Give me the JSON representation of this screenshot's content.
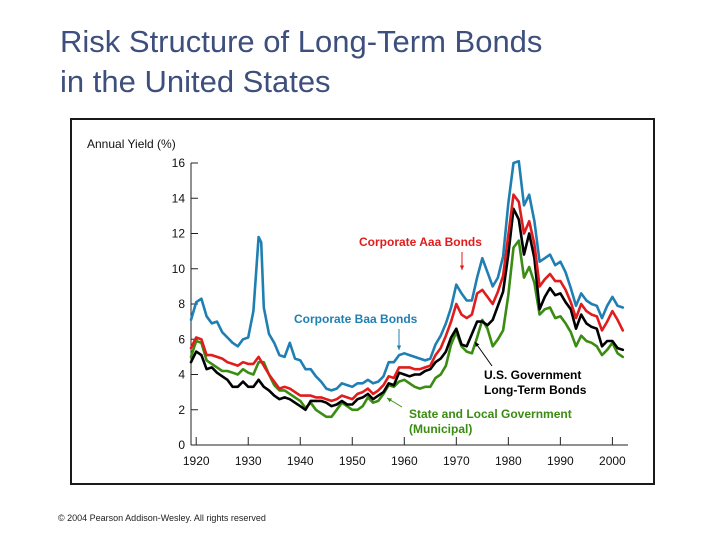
{
  "slide": {
    "title_line1": "Risk Structure of Long-Term Bonds",
    "title_line2": "in the United States",
    "copyright": "© 2004 Pearson Addison-Wesley. All rights reserved"
  },
  "colors": {
    "title": "#3d4f7d",
    "baa": "#1f7fb3",
    "aaa": "#e01c1c",
    "treasury": "#000000",
    "municipal": "#3a8c12"
  },
  "chart_data": {
    "type": "line",
    "ylabel": "Annual Yield (%)",
    "xlabel": "",
    "ylim": [
      0,
      16
    ],
    "xlim": [
      1919,
      2003
    ],
    "y_ticks": [
      0,
      2,
      4,
      6,
      8,
      10,
      12,
      14,
      16
    ],
    "x_ticks": [
      1920,
      1930,
      1940,
      1950,
      1960,
      1970,
      1980,
      1990,
      2000
    ],
    "series": [
      {
        "name": "Corporate Baa Bonds",
        "key": "baa",
        "labels": [
          "Corporate Baa Bonds"
        ],
        "x": [
          1919,
          1920,
          1921,
          1922,
          1923,
          1924,
          1925,
          1926,
          1927,
          1928,
          1929,
          1930,
          1931,
          1932,
          1932.5,
          1933,
          1934,
          1935,
          1936,
          1937,
          1938,
          1939,
          1940,
          1941,
          1942,
          1943,
          1944,
          1945,
          1946,
          1947,
          1948,
          1949,
          1950,
          1951,
          1952,
          1953,
          1954,
          1955,
          1956,
          1957,
          1958,
          1959,
          1960,
          1961,
          1962,
          1963,
          1964,
          1965,
          1966,
          1967,
          1968,
          1969,
          1970,
          1971,
          1972,
          1973,
          1974,
          1975,
          1976,
          1977,
          1978,
          1979,
          1980,
          1981,
          1982,
          1983,
          1984,
          1985,
          1986,
          1987,
          1988,
          1989,
          1990,
          1991,
          1992,
          1993,
          1994,
          1995,
          1996,
          1997,
          1998,
          1999,
          2000,
          2001,
          2002
        ],
        "values": [
          7.1,
          8.1,
          8.3,
          7.3,
          6.9,
          7.0,
          6.4,
          6.1,
          5.8,
          5.6,
          6.0,
          6.1,
          7.6,
          11.8,
          11.5,
          7.8,
          6.3,
          5.8,
          5.1,
          5.0,
          5.8,
          4.9,
          4.8,
          4.3,
          4.3,
          3.9,
          3.6,
          3.2,
          3.1,
          3.2,
          3.5,
          3.4,
          3.3,
          3.5,
          3.5,
          3.7,
          3.5,
          3.6,
          3.9,
          4.7,
          4.7,
          5.1,
          5.2,
          5.1,
          5.0,
          4.9,
          4.8,
          4.9,
          5.7,
          6.2,
          6.9,
          7.8,
          9.1,
          8.6,
          8.2,
          8.2,
          9.5,
          10.6,
          9.8,
          9.0,
          9.5,
          10.7,
          13.7,
          16.0,
          16.1,
          13.6,
          14.2,
          12.7,
          10.4,
          10.6,
          10.8,
          10.2,
          10.4,
          9.8,
          8.9,
          7.9,
          8.6,
          8.2,
          8.0,
          7.9,
          7.2,
          7.9,
          8.4,
          7.9,
          7.8
        ]
      },
      {
        "name": "Corporate Aaa Bonds",
        "key": "aaa",
        "labels": [
          "Corporate Aaa Bonds"
        ],
        "x": [
          1919,
          1920,
          1921,
          1922,
          1923,
          1924,
          1925,
          1926,
          1927,
          1928,
          1929,
          1930,
          1931,
          1932,
          1933,
          1934,
          1935,
          1936,
          1937,
          1938,
          1939,
          1940,
          1941,
          1942,
          1943,
          1944,
          1945,
          1946,
          1947,
          1948,
          1949,
          1950,
          1951,
          1952,
          1953,
          1954,
          1955,
          1956,
          1957,
          1958,
          1959,
          1960,
          1961,
          1962,
          1963,
          1964,
          1965,
          1966,
          1967,
          1968,
          1969,
          1970,
          1971,
          1972,
          1973,
          1974,
          1975,
          1976,
          1977,
          1978,
          1979,
          1980,
          1981,
          1982,
          1983,
          1984,
          1985,
          1986,
          1987,
          1988,
          1989,
          1990,
          1991,
          1992,
          1993,
          1994,
          1995,
          1996,
          1997,
          1998,
          1999,
          2000,
          2001,
          2002
        ],
        "values": [
          5.5,
          6.1,
          6.0,
          5.1,
          5.1,
          5.0,
          4.9,
          4.7,
          4.6,
          4.5,
          4.7,
          4.6,
          4.6,
          5.0,
          4.5,
          4.0,
          3.6,
          3.2,
          3.3,
          3.2,
          3.0,
          2.8,
          2.8,
          2.8,
          2.7,
          2.7,
          2.6,
          2.5,
          2.6,
          2.8,
          2.7,
          2.6,
          2.9,
          3.0,
          3.2,
          2.9,
          3.1,
          3.4,
          3.9,
          3.8,
          4.4,
          4.4,
          4.4,
          4.3,
          4.3,
          4.4,
          4.5,
          5.1,
          5.5,
          6.2,
          7.0,
          8.0,
          7.4,
          7.2,
          7.4,
          8.6,
          8.8,
          8.4,
          8.0,
          8.7,
          9.6,
          11.9,
          14.2,
          13.8,
          12.0,
          12.7,
          11.4,
          9.0,
          9.4,
          9.7,
          9.3,
          9.3,
          8.8,
          8.1,
          7.2,
          8.0,
          7.6,
          7.4,
          7.3,
          6.5,
          7.0,
          7.6,
          7.1,
          6.5
        ]
      },
      {
        "name": "U.S. Government Long-Term Bonds",
        "key": "treasury",
        "labels": [
          "U.S. Government",
          "Long-Term Bonds"
        ],
        "x": [
          1919,
          1920,
          1921,
          1922,
          1923,
          1924,
          1925,
          1926,
          1927,
          1928,
          1929,
          1930,
          1931,
          1932,
          1933,
          1934,
          1935,
          1936,
          1937,
          1938,
          1939,
          1940,
          1941,
          1942,
          1943,
          1944,
          1945,
          1946,
          1947,
          1948,
          1949,
          1950,
          1951,
          1952,
          1953,
          1954,
          1955,
          1956,
          1957,
          1958,
          1959,
          1960,
          1961,
          1962,
          1963,
          1964,
          1965,
          1966,
          1967,
          1968,
          1969,
          1970,
          1971,
          1972,
          1973,
          1974,
          1975,
          1976,
          1977,
          1978,
          1979,
          1980,
          1981,
          1982,
          1983,
          1984,
          1985,
          1986,
          1987,
          1988,
          1989,
          1990,
          1991,
          1992,
          1993,
          1994,
          1995,
          1996,
          1997,
          1998,
          1999,
          2000,
          2001,
          2002
        ],
        "values": [
          4.7,
          5.3,
          5.1,
          4.3,
          4.4,
          4.1,
          3.9,
          3.7,
          3.3,
          3.3,
          3.6,
          3.3,
          3.3,
          3.7,
          3.3,
          3.1,
          2.8,
          2.6,
          2.7,
          2.6,
          2.4,
          2.2,
          2.0,
          2.5,
          2.5,
          2.5,
          2.4,
          2.2,
          2.3,
          2.5,
          2.3,
          2.3,
          2.6,
          2.7,
          2.9,
          2.6,
          2.8,
          3.0,
          3.5,
          3.4,
          4.1,
          4.0,
          3.9,
          4.0,
          4.0,
          4.2,
          4.3,
          4.7,
          4.9,
          5.3,
          6.1,
          6.6,
          5.7,
          5.6,
          6.3,
          7.0,
          7.0,
          6.8,
          7.1,
          7.9,
          8.7,
          10.8,
          13.4,
          12.8,
          10.8,
          12.0,
          10.6,
          7.7,
          8.4,
          8.9,
          8.5,
          8.6,
          8.1,
          7.7,
          6.6,
          7.4,
          6.9,
          6.7,
          6.6,
          5.6,
          5.9,
          5.9,
          5.5,
          5.4
        ]
      },
      {
        "name": "State and Local Government (Municipal)",
        "key": "municipal",
        "labels": [
          "State and Local Government",
          "(Municipal)"
        ],
        "x": [
          1919,
          1920,
          1921,
          1922,
          1923,
          1924,
          1925,
          1926,
          1927,
          1928,
          1929,
          1930,
          1931,
          1932,
          1933,
          1934,
          1935,
          1936,
          1937,
          1938,
          1939,
          1940,
          1941,
          1942,
          1943,
          1944,
          1945,
          1946,
          1947,
          1948,
          1949,
          1950,
          1951,
          1952,
          1953,
          1954,
          1955,
          1956,
          1957,
          1958,
          1959,
          1960,
          1961,
          1962,
          1963,
          1964,
          1965,
          1966,
          1967,
          1968,
          1969,
          1970,
          1971,
          1972,
          1973,
          1974,
          1975,
          1976,
          1977,
          1978,
          1979,
          1980,
          1981,
          1982,
          1983,
          1984,
          1985,
          1986,
          1987,
          1988,
          1989,
          1990,
          1991,
          1992,
          1993,
          1994,
          1995,
          1996,
          1997,
          1998,
          1999,
          2000,
          2001,
          2002
        ],
        "values": [
          5.0,
          5.9,
          5.8,
          4.8,
          4.6,
          4.4,
          4.2,
          4.2,
          4.1,
          4.0,
          4.3,
          4.1,
          4.0,
          4.7,
          4.7,
          4.0,
          3.4,
          3.1,
          3.1,
          2.9,
          2.7,
          2.5,
          2.1,
          2.4,
          2.0,
          1.8,
          1.6,
          1.6,
          2.0,
          2.4,
          2.2,
          2.0,
          2.0,
          2.2,
          2.7,
          2.4,
          2.5,
          2.9,
          3.4,
          3.3,
          3.6,
          3.7,
          3.5,
          3.3,
          3.2,
          3.3,
          3.3,
          3.8,
          4.0,
          4.5,
          5.7,
          6.4,
          5.6,
          5.3,
          5.2,
          6.1,
          7.1,
          6.6,
          5.6,
          6.0,
          6.5,
          8.5,
          11.2,
          11.6,
          9.5,
          10.1,
          9.2,
          7.4,
          7.7,
          7.8,
          7.2,
          7.3,
          6.9,
          6.4,
          5.6,
          6.2,
          5.9,
          5.8,
          5.6,
          5.1,
          5.4,
          5.8,
          5.2,
          5.0
        ]
      }
    ]
  }
}
